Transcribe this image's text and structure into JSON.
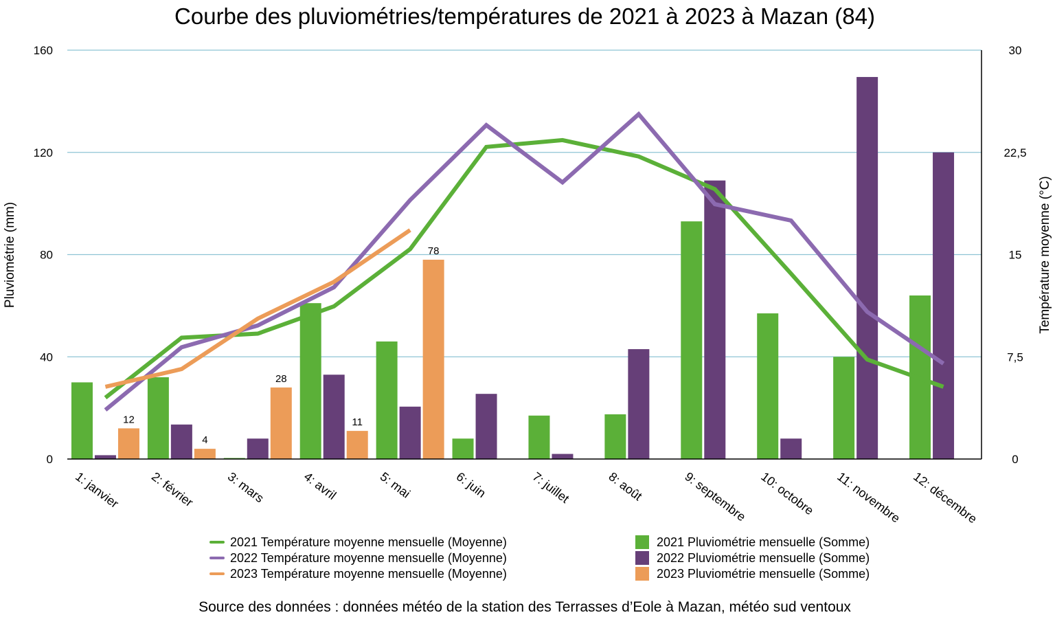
{
  "chart_data": {
    "type": "bar",
    "title": "Courbe des pluviométries/températures de 2021 à 2023 à Mazan (84)",
    "source": "Source des données : données météo de la station des Terrasses d’Eole à Mazan, météo sud ventoux",
    "categories": [
      "1: janvier",
      "2: février",
      "3: mars",
      "4: avril",
      "5: mai",
      "6: juin",
      "7: juillet",
      "8: août",
      "9: septembre",
      "10: octobre",
      "11: novembre",
      "12: décembre"
    ],
    "ylabel": "Pluviométrie (mm)",
    "y2label": "Température moyenne (°C)",
    "ylim": [
      0,
      160
    ],
    "y2lim": [
      0,
      30
    ],
    "yticks": [
      "0",
      "40",
      "80",
      "120",
      "160"
    ],
    "y2ticks": [
      "0",
      "7,5",
      "15",
      "22,5",
      "30"
    ],
    "grid": true,
    "legend_position": "bottom",
    "bar_series": [
      {
        "name": "2021 Pluviométrie mensuelle (Somme)",
        "color": "#5bb038",
        "values": [
          30,
          32,
          0.4,
          61,
          46,
          8,
          17,
          17.5,
          93,
          57,
          40,
          64
        ]
      },
      {
        "name": "2022 Pluviométrie mensuelle (Somme)",
        "color": "#663f78",
        "values": [
          1.5,
          13.5,
          8,
          33,
          20.5,
          25.5,
          2,
          43,
          109,
          8,
          149.5,
          120
        ]
      },
      {
        "name": "2023 Pluviométrie mensuelle (Somme)",
        "color": "#ec9c58",
        "values": [
          12,
          4,
          28,
          11,
          78,
          null,
          null,
          null,
          null,
          null,
          null,
          null
        ],
        "data_labels": [
          "12",
          "4",
          "28",
          "11",
          "78",
          "",
          "",
          "",
          "",
          "",
          "",
          ""
        ]
      }
    ],
    "line_series": [
      {
        "name": "2021 Température moyenne mensuelle (Moyenne)",
        "color": "#5bb038",
        "values": [
          4.5,
          8.9,
          9.2,
          11.2,
          15.4,
          22.9,
          23.4,
          22.2,
          19.8,
          13.6,
          7.3,
          5.3
        ]
      },
      {
        "name": "2022 Température moyenne mensuelle (Moyenne)",
        "color": "#8c6ab0",
        "values": [
          3.6,
          8.2,
          9.8,
          12.6,
          19.0,
          24.5,
          20.3,
          25.3,
          18.7,
          17.5,
          10.8,
          7.0
        ]
      },
      {
        "name": "2023 Température moyenne mensuelle (Moyenne)",
        "color": "#ec9c58",
        "values": [
          5.3,
          6.6,
          10.3,
          13.0,
          16.8,
          null,
          null,
          null,
          null,
          null,
          null,
          null
        ]
      }
    ]
  }
}
